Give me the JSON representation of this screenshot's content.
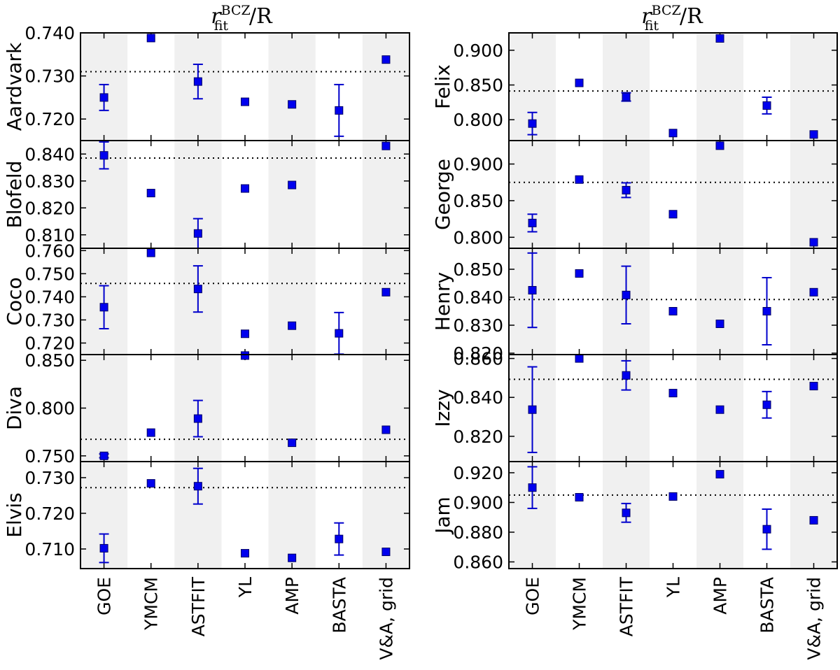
{
  "chart_data": {
    "type": "scatter",
    "x_categories": [
      "GOE",
      "YMCM",
      "ASTFIT",
      "YL",
      "AMP",
      "BASTA",
      "V&A, grid"
    ],
    "columns": [
      {
        "title_main": "r",
        "title_sub": "fit",
        "title_sup": "BCZ",
        "title_tail": "/R",
        "panels": [
          {
            "star": "Aardvark",
            "ylim": [
              0.715,
              0.74
            ],
            "yticks": [
              0.72,
              0.73,
              0.74
            ],
            "ytick_labels": [
              "0.720",
              "0.730",
              "0.740"
            ],
            "reference": 0.731,
            "points": [
              {
                "method": "GOE",
                "value": 0.725,
                "err": 0.003
              },
              {
                "method": "YMCM",
                "value": 0.7388,
                "err": null
              },
              {
                "method": "ASTFIT",
                "value": 0.7287,
                "err": 0.004
              },
              {
                "method": "YL",
                "value": 0.724,
                "err": null
              },
              {
                "method": "AMP",
                "value": 0.7234,
                "err": null
              },
              {
                "method": "BASTA",
                "value": 0.722,
                "err": 0.006
              },
              {
                "method": "V&A, grid",
                "value": 0.7338,
                "err": null
              }
            ]
          },
          {
            "star": "Blofeld",
            "ylim": [
              0.805,
              0.845
            ],
            "yticks": [
              0.81,
              0.82,
              0.83,
              0.84
            ],
            "ytick_labels": [
              "0.810",
              "0.820",
              "0.830",
              "0.840"
            ],
            "reference": 0.8385,
            "points": [
              {
                "method": "GOE",
                "value": 0.8395,
                "err": 0.005
              },
              {
                "method": "YMCM",
                "value": 0.8255,
                "err": null
              },
              {
                "method": "ASTFIT",
                "value": 0.8105,
                "err": 0.0055
              },
              {
                "method": "YL",
                "value": 0.8272,
                "err": null
              },
              {
                "method": "AMP",
                "value": 0.8285,
                "err": null
              },
              {
                "method": "BASTA",
                "value": null,
                "err": null
              },
              {
                "method": "V&A, grid",
                "value": 0.843,
                "err": null
              }
            ]
          },
          {
            "star": "Coco",
            "ylim": [
              0.715,
              0.761
            ],
            "yticks": [
              0.72,
              0.73,
              0.74,
              0.75,
              0.76
            ],
            "ytick_labels": [
              "0.720",
              "0.730",
              "0.740",
              "0.750",
              "0.760"
            ],
            "reference": 0.7458,
            "points": [
              {
                "method": "GOE",
                "value": 0.7355,
                "err": 0.0093
              },
              {
                "method": "YMCM",
                "value": 0.759,
                "err": null
              },
              {
                "method": "ASTFIT",
                "value": 0.7434,
                "err": 0.01
              },
              {
                "method": "YL",
                "value": 0.724,
                "err": null
              },
              {
                "method": "AMP",
                "value": 0.7275,
                "err": null
              },
              {
                "method": "BASTA",
                "value": 0.7242,
                "err": 0.009
              },
              {
                "method": "V&A, grid",
                "value": 0.742,
                "err": null
              }
            ]
          },
          {
            "star": "Diva",
            "ylim": [
              0.744,
              0.856
            ],
            "yticks": [
              0.75,
              0.8,
              0.85
            ],
            "ytick_labels": [
              "0.750",
              "0.800",
              "0.850"
            ],
            "reference": 0.7673,
            "points": [
              {
                "method": "GOE",
                "value": 0.75,
                "err": 0.002
              },
              {
                "method": "YMCM",
                "value": 0.7743,
                "err": null
              },
              {
                "method": "ASTFIT",
                "value": 0.789,
                "err": 0.019
              },
              {
                "method": "YL",
                "value": 0.855,
                "err": null
              },
              {
                "method": "AMP",
                "value": 0.7637,
                "err": null
              },
              {
                "method": "BASTA",
                "value": null,
                "err": null
              },
              {
                "method": "V&A, grid",
                "value": 0.7773,
                "err": null
              }
            ]
          },
          {
            "star": "Elvis",
            "ylim": [
              0.7045,
              0.7345
            ],
            "yticks": [
              0.71,
              0.72,
              0.73
            ],
            "ytick_labels": [
              "0.710",
              "0.720",
              "0.730"
            ],
            "reference": 0.7272,
            "points": [
              {
                "method": "GOE",
                "value": 0.7102,
                "err": 0.004
              },
              {
                "method": "YMCM",
                "value": 0.7284,
                "err": null
              },
              {
                "method": "ASTFIT",
                "value": 0.7276,
                "err": 0.005
              },
              {
                "method": "YL",
                "value": 0.7088,
                "err": null
              },
              {
                "method": "AMP",
                "value": 0.7075,
                "err": null
              },
              {
                "method": "BASTA",
                "value": 0.7128,
                "err": 0.0045
              },
              {
                "method": "V&A, grid",
                "value": 0.7092,
                "err": null
              }
            ]
          }
        ]
      },
      {
        "title_main": "r",
        "title_sub": "fit",
        "title_sup": "BCZ",
        "title_tail": "/R",
        "panels": [
          {
            "star": "Felix",
            "ylim": [
              0.77,
              0.925
            ],
            "yticks": [
              0.8,
              0.85,
              0.9
            ],
            "ytick_labels": [
              "0.800",
              "0.850",
              "0.900"
            ],
            "reference": 0.8413,
            "points": [
              {
                "method": "GOE",
                "value": 0.7945,
                "err": 0.016
              },
              {
                "method": "YMCM",
                "value": 0.853,
                "err": null
              },
              {
                "method": "ASTFIT",
                "value": 0.8328,
                "err": 0.006
              },
              {
                "method": "YL",
                "value": 0.7808,
                "err": null
              },
              {
                "method": "AMP",
                "value": 0.917,
                "err": null
              },
              {
                "method": "BASTA",
                "value": 0.8204,
                "err": 0.012
              },
              {
                "method": "V&A, grid",
                "value": 0.7788,
                "err": null
              }
            ]
          },
          {
            "star": "George",
            "ylim": [
              0.785,
              0.932
            ],
            "yticks": [
              0.8,
              0.85,
              0.9
            ],
            "ytick_labels": [
              "0.800",
              "0.850",
              "0.900"
            ],
            "reference": 0.875,
            "points": [
              {
                "method": "GOE",
                "value": 0.8195,
                "err": 0.012
              },
              {
                "method": "YMCM",
                "value": 0.8788,
                "err": null
              },
              {
                "method": "ASTFIT",
                "value": 0.8643,
                "err": 0.01
              },
              {
                "method": "YL",
                "value": 0.8315,
                "err": null
              },
              {
                "method": "AMP",
                "value": 0.925,
                "err": null
              },
              {
                "method": "BASTA",
                "value": null,
                "err": null
              },
              {
                "method": "V&A, grid",
                "value": 0.7932,
                "err": null
              }
            ]
          },
          {
            "star": "Henry",
            "ylim": [
              0.8195,
              0.8575
            ],
            "yticks": [
              0.82,
              0.83,
              0.84,
              0.85
            ],
            "ytick_labels": [
              "0.820",
              "0.830",
              "0.840",
              "0.850"
            ],
            "reference": 0.8392,
            "points": [
              {
                "method": "GOE",
                "value": 0.8425,
                "err": 0.0133
              },
              {
                "method": "YMCM",
                "value": 0.8485,
                "err": null
              },
              {
                "method": "ASTFIT",
                "value": 0.8408,
                "err": 0.0103
              },
              {
                "method": "YL",
                "value": 0.835,
                "err": null
              },
              {
                "method": "AMP",
                "value": 0.8305,
                "err": null
              },
              {
                "method": "BASTA",
                "value": 0.835,
                "err": 0.012
              },
              {
                "method": "V&A, grid",
                "value": 0.8418,
                "err": null
              }
            ]
          },
          {
            "star": "Izzy",
            "ylim": [
              0.807,
              0.862
            ],
            "yticks": [
              0.82,
              0.84,
              0.86
            ],
            "ytick_labels": [
              "0.820",
              "0.840",
              "0.860"
            ],
            "reference": 0.8493,
            "points": [
              {
                "method": "GOE",
                "value": 0.8337,
                "err": 0.022
              },
              {
                "method": "YMCM",
                "value": 0.86,
                "err": null
              },
              {
                "method": "ASTFIT",
                "value": 0.8513,
                "err": 0.0075
              },
              {
                "method": "YL",
                "value": 0.8422,
                "err": null
              },
              {
                "method": "AMP",
                "value": 0.8337,
                "err": null
              },
              {
                "method": "BASTA",
                "value": 0.8362,
                "err": 0.0068
              },
              {
                "method": "V&A, grid",
                "value": 0.8458,
                "err": null
              }
            ]
          },
          {
            "star": "Jam",
            "ylim": [
              0.8555,
              0.9275
            ],
            "yticks": [
              0.86,
              0.88,
              0.9,
              0.92
            ],
            "ytick_labels": [
              "0.860",
              "0.880",
              "0.900",
              "0.920"
            ],
            "reference": 0.905,
            "points": [
              {
                "method": "GOE",
                "value": 0.91,
                "err": 0.014
              },
              {
                "method": "YMCM",
                "value": 0.9035,
                "err": null
              },
              {
                "method": "ASTFIT",
                "value": 0.893,
                "err": 0.0063
              },
              {
                "method": "YL",
                "value": 0.904,
                "err": null
              },
              {
                "method": "AMP",
                "value": 0.919,
                "err": null
              },
              {
                "method": "BASTA",
                "value": 0.882,
                "err": 0.0135
              },
              {
                "method": "V&A, grid",
                "value": 0.888,
                "err": null
              }
            ]
          }
        ]
      }
    ]
  }
}
